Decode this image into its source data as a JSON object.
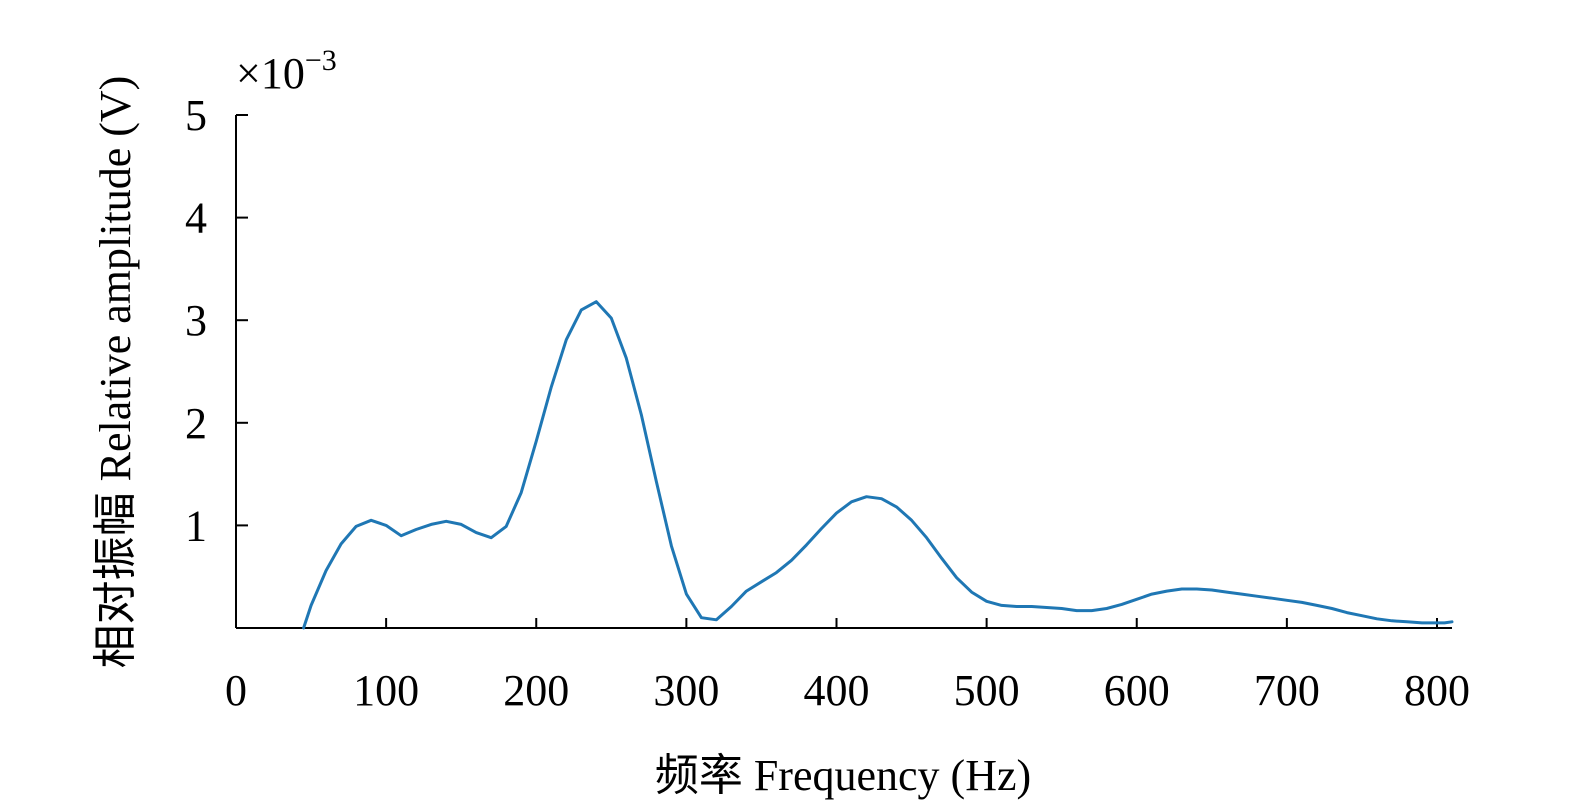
{
  "chart_data": {
    "type": "line",
    "title": "",
    "xlabel": "频率 Frequency (Hz)",
    "ylabel": "相对振幅 Relative amplitude (V)",
    "y_multiplier": {
      "base": "×10",
      "exponent": "−3"
    },
    "xlim": [
      0,
      810
    ],
    "ylim": [
      0,
      5
    ],
    "x_ticks": [
      0,
      100,
      200,
      300,
      400,
      500,
      600,
      700,
      800
    ],
    "y_ticks": [
      1,
      2,
      3,
      4,
      5
    ],
    "x_tick_labels": [
      "0",
      "100",
      "200",
      "300",
      "400",
      "500",
      "600",
      "700",
      "800"
    ],
    "y_tick_labels": [
      "1",
      "2",
      "3",
      "4",
      "5"
    ],
    "grid": false,
    "line_color": "#1f77b4",
    "series": [
      {
        "x": [
          45,
          50,
          60,
          70,
          80,
          90,
          100,
          110,
          120,
          130,
          140,
          150,
          160,
          170,
          180,
          190,
          200,
          210,
          220,
          230,
          240,
          250,
          260,
          270,
          280,
          290,
          300,
          310,
          320,
          330,
          340,
          350,
          360,
          370,
          380,
          390,
          400,
          410,
          420,
          430,
          440,
          450,
          460,
          470,
          480,
          490,
          500,
          510,
          520,
          530,
          540,
          550,
          560,
          570,
          580,
          590,
          600,
          610,
          620,
          630,
          640,
          650,
          660,
          670,
          680,
          690,
          700,
          710,
          720,
          730,
          740,
          750,
          760,
          770,
          780,
          790,
          800,
          805,
          810
        ],
        "y": [
          0.0,
          0.22,
          0.56,
          0.82,
          0.99,
          1.05,
          1.0,
          0.9,
          0.96,
          1.01,
          1.04,
          1.01,
          0.93,
          0.88,
          0.99,
          1.32,
          1.82,
          2.35,
          2.81,
          3.1,
          3.18,
          3.02,
          2.63,
          2.08,
          1.43,
          0.8,
          0.33,
          0.1,
          0.08,
          0.21,
          0.36,
          0.45,
          0.54,
          0.66,
          0.81,
          0.97,
          1.12,
          1.23,
          1.28,
          1.26,
          1.18,
          1.05,
          0.88,
          0.68,
          0.49,
          0.35,
          0.26,
          0.22,
          0.21,
          0.21,
          0.2,
          0.19,
          0.17,
          0.17,
          0.19,
          0.23,
          0.28,
          0.33,
          0.36,
          0.38,
          0.38,
          0.37,
          0.35,
          0.33,
          0.31,
          0.29,
          0.27,
          0.25,
          0.22,
          0.19,
          0.15,
          0.12,
          0.09,
          0.07,
          0.06,
          0.05,
          0.05,
          0.05,
          0.06
        ]
      }
    ]
  }
}
